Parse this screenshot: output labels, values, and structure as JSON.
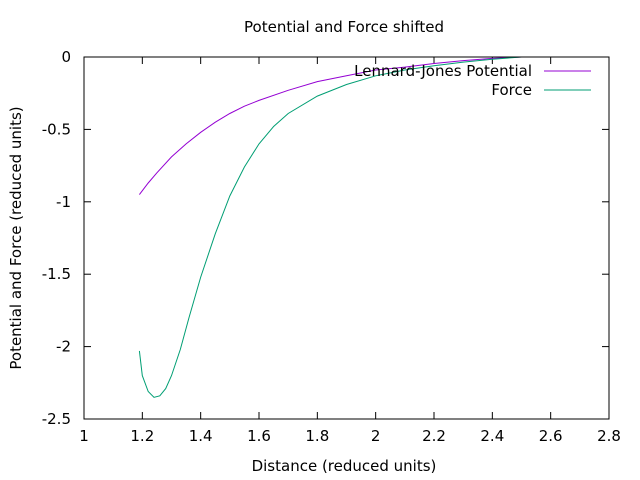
{
  "chart_data": {
    "type": "line",
    "title": "Potential and Force shifted",
    "xlabel": "Distance (reduced units)",
    "ylabel": "Potential and Force (reduced units)",
    "xlim": [
      1,
      2.8
    ],
    "ylim": [
      -2.5,
      0
    ],
    "xticks": [
      1,
      1.2,
      1.4,
      1.6,
      1.8,
      2,
      2.2,
      2.4,
      2.6,
      2.8
    ],
    "xtick_labels": [
      "1",
      "1.2",
      "1.4",
      "1.6",
      "1.8",
      "2",
      "2.2",
      "2.4",
      "2.6",
      "2.8"
    ],
    "yticks": [
      0,
      -0.5,
      -1,
      -1.5,
      -2,
      -2.5
    ],
    "ytick_labels": [
      "0",
      "-0.5",
      "-1",
      "-1.5",
      "-2",
      "-2.5"
    ],
    "grid": false,
    "legend": "top-right",
    "series": [
      {
        "name": "Lennard-Jones Potential",
        "color": "#9400d3",
        "x": [
          1.19,
          1.22,
          1.25,
          1.3,
          1.35,
          1.4,
          1.45,
          1.5,
          1.55,
          1.6,
          1.7,
          1.8,
          1.9,
          2.0,
          2.1,
          2.2,
          2.3,
          2.4,
          2.5
        ],
        "y": [
          -0.95,
          -0.87,
          -0.8,
          -0.69,
          -0.6,
          -0.52,
          -0.45,
          -0.39,
          -0.34,
          -0.3,
          -0.23,
          -0.17,
          -0.13,
          -0.09,
          -0.07,
          -0.045,
          -0.025,
          -0.01,
          0
        ]
      },
      {
        "name": "Force",
        "color": "#009e73",
        "x": [
          1.19,
          1.2,
          1.22,
          1.24,
          1.26,
          1.28,
          1.3,
          1.33,
          1.36,
          1.4,
          1.45,
          1.5,
          1.55,
          1.6,
          1.65,
          1.7,
          1.8,
          1.9,
          2.0,
          2.1,
          2.2,
          2.3,
          2.4,
          2.5
        ],
        "y": [
          -2.03,
          -2.2,
          -2.31,
          -2.35,
          -2.34,
          -2.29,
          -2.2,
          -2.02,
          -1.8,
          -1.52,
          -1.22,
          -0.96,
          -0.76,
          -0.6,
          -0.48,
          -0.39,
          -0.27,
          -0.19,
          -0.13,
          -0.09,
          -0.06,
          -0.035,
          -0.015,
          0
        ]
      }
    ]
  }
}
